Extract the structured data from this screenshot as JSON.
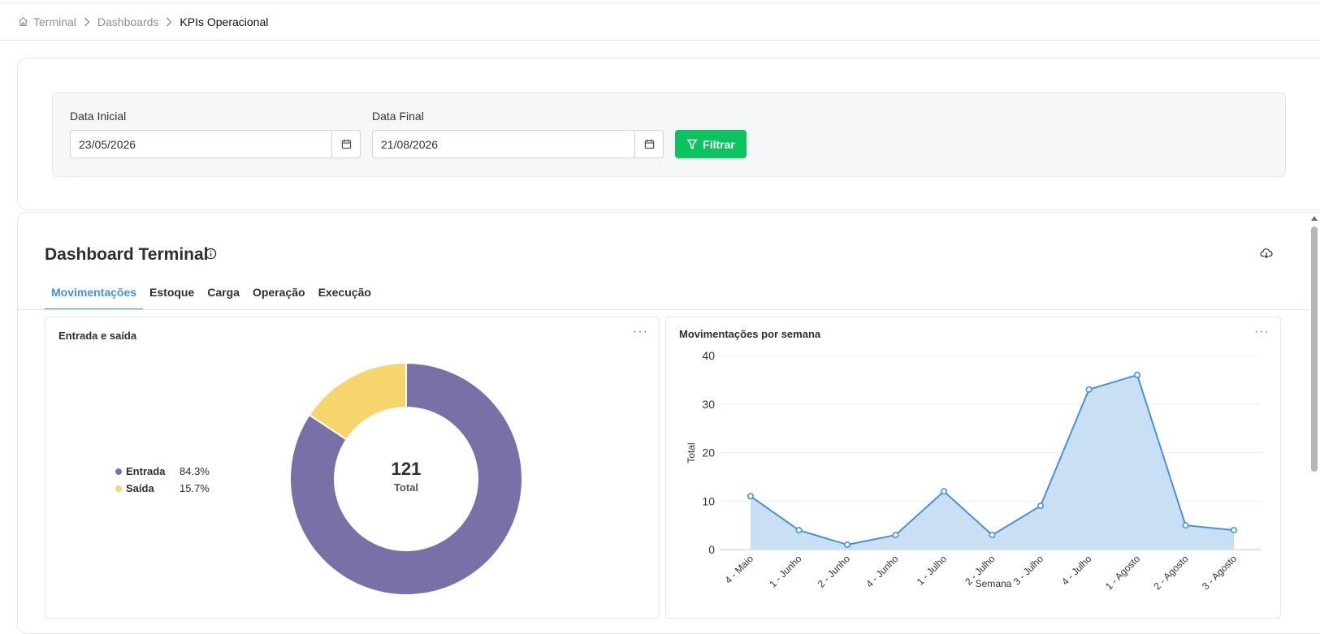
{
  "breadcrumb": {
    "items": [
      "Terminal",
      "Dashboards"
    ],
    "current": "KPIs Operacional"
  },
  "filter": {
    "start_label": "Data Inicial",
    "start_value": "23/05/2026",
    "end_label": "Data Final",
    "end_value": "21/08/2026",
    "button_label": "Filtrar"
  },
  "dashboard": {
    "title": "Dashboard Terminal",
    "tabs": [
      "Movimentações",
      "Estoque",
      "Carga",
      "Operação",
      "Execução"
    ],
    "active_tab": "Movimentações"
  },
  "colors": {
    "accent": "#4a90d9",
    "filter_button": "#0dc35f",
    "entrada": "#7a70a8",
    "saida": "#f5d56c",
    "area_fill": "#c9dff4",
    "line": "#4a90d9"
  },
  "chart_data": [
    {
      "type": "pie",
      "title": "Entrada e saída",
      "labels": [
        "Entrada",
        "Saída"
      ],
      "values": [
        84.3,
        15.7
      ],
      "value_labels": [
        "84.3%",
        "15.7%"
      ],
      "center_value": "121",
      "center_label": "Total",
      "legend_position": "left"
    },
    {
      "type": "area",
      "title": "Movimentações por semana",
      "xlabel": "Semana",
      "ylabel": "Total",
      "categories": [
        "4 - Maio",
        "1 - Junho",
        "2 - Junho",
        "4 - Junho",
        "1 - Julho",
        "2 - Julho",
        "3 - Julho",
        "4 - Julho",
        "1 - Agosto",
        "2 - Agosto",
        "3 - Agosto"
      ],
      "values": [
        11,
        4,
        1,
        3,
        12,
        3,
        9,
        33,
        36,
        5,
        4
      ],
      "ylim": [
        0,
        40
      ],
      "yticks": [
        "0",
        "10",
        "20",
        "30",
        "40"
      ],
      "grid": true
    }
  ]
}
